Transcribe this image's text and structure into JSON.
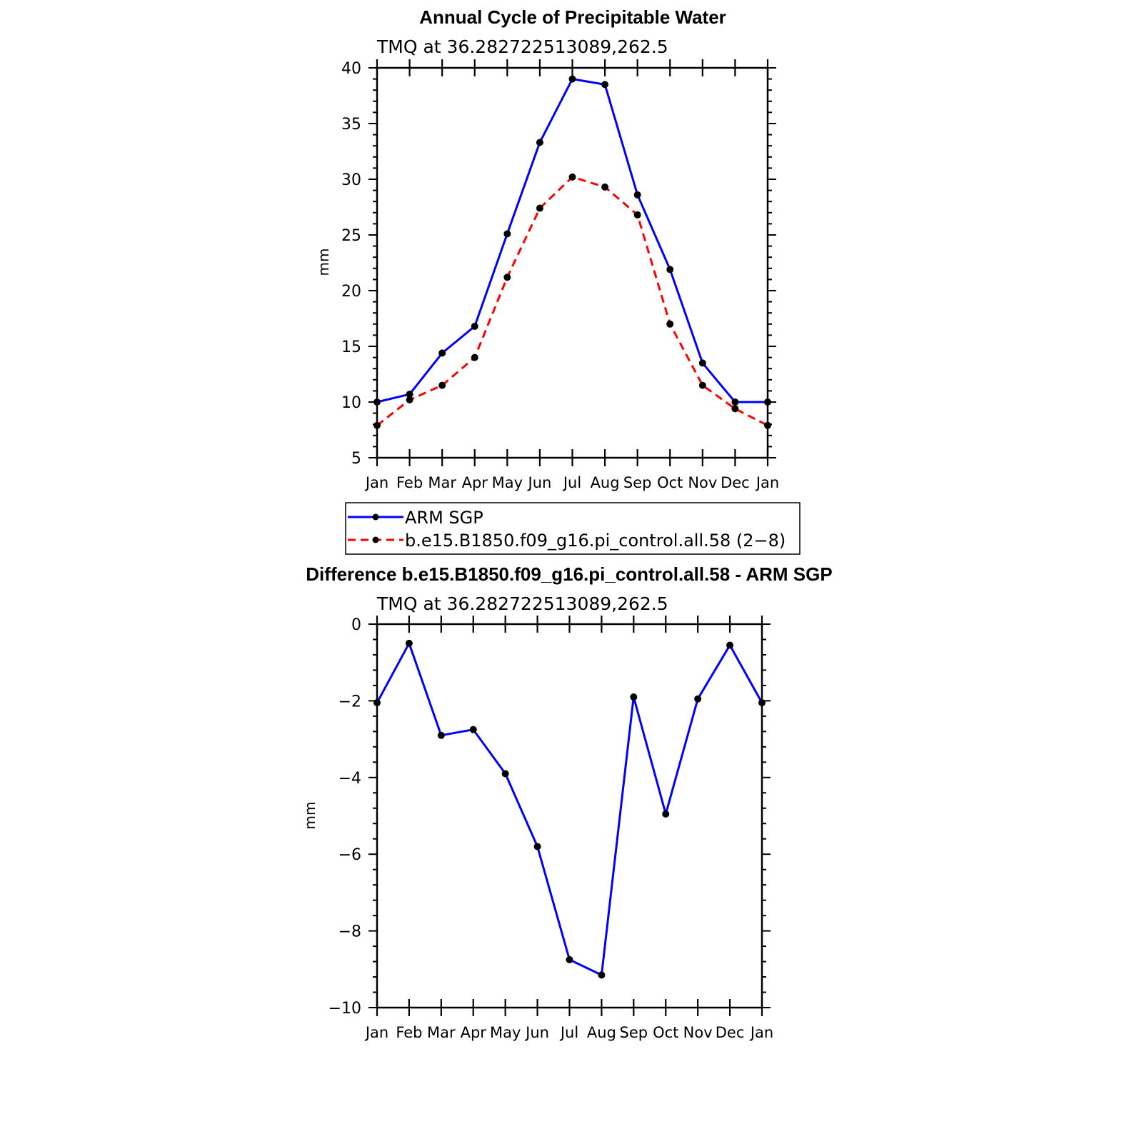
{
  "chart_data": [
    {
      "type": "line",
      "title": "Annual Cycle of Precipitable Water",
      "subtitle": "TMQ at 36.282722513089,262.5",
      "xlabel": "",
      "ylabel": "mm",
      "categories": [
        "Jan",
        "Feb",
        "Mar",
        "Apr",
        "May",
        "Jun",
        "Jul",
        "Aug",
        "Sep",
        "Oct",
        "Nov",
        "Dec",
        "Jan"
      ],
      "ylim": [
        5,
        40
      ],
      "yticks": [
        5,
        10,
        15,
        20,
        25,
        30,
        35,
        40
      ],
      "yticks_text": [
        "5",
        "10",
        "15",
        "20",
        "25",
        "30",
        "35",
        "40"
      ],
      "legend_position": "below",
      "series": [
        {
          "name": "ARM SGP",
          "color": "#0000ff",
          "style": "solid",
          "values": [
            10.0,
            10.7,
            14.4,
            16.8,
            25.1,
            33.3,
            39.0,
            38.5,
            28.6,
            21.9,
            13.5,
            10.0,
            10.0
          ]
        },
        {
          "name": "b.e15.B1850.f09_g16.pi_control.all.58 (2−8)",
          "color": "#ff0000",
          "style": "dashed",
          "values": [
            7.9,
            10.2,
            11.5,
            14.0,
            21.2,
            27.4,
            30.2,
            29.3,
            26.8,
            17.0,
            11.5,
            9.4,
            7.9
          ]
        }
      ]
    },
    {
      "type": "line",
      "title": "Difference b.e15.B1850.f09_g16.pi_control.all.58 - ARM SGP",
      "subtitle": "TMQ at 36.282722513089,262.5",
      "xlabel": "",
      "ylabel": "mm",
      "categories": [
        "Jan",
        "Feb",
        "Mar",
        "Apr",
        "May",
        "Jun",
        "Jul",
        "Aug",
        "Sep",
        "Oct",
        "Nov",
        "Dec",
        "Jan"
      ],
      "ylim": [
        -10,
        0
      ],
      "yticks": [
        0,
        -2,
        -4,
        -6,
        -8,
        -10
      ],
      "yticks_text": [
        "0",
        "−2",
        "−4",
        "−6",
        "−8",
        "−10"
      ],
      "series": [
        {
          "name": "Difference",
          "color": "#0000ff",
          "style": "solid",
          "values": [
            -2.05,
            -0.5,
            -2.9,
            -2.75,
            -3.9,
            -5.8,
            -8.75,
            -9.15,
            -1.9,
            -4.95,
            -1.95,
            -0.55,
            -2.05
          ]
        }
      ]
    }
  ]
}
